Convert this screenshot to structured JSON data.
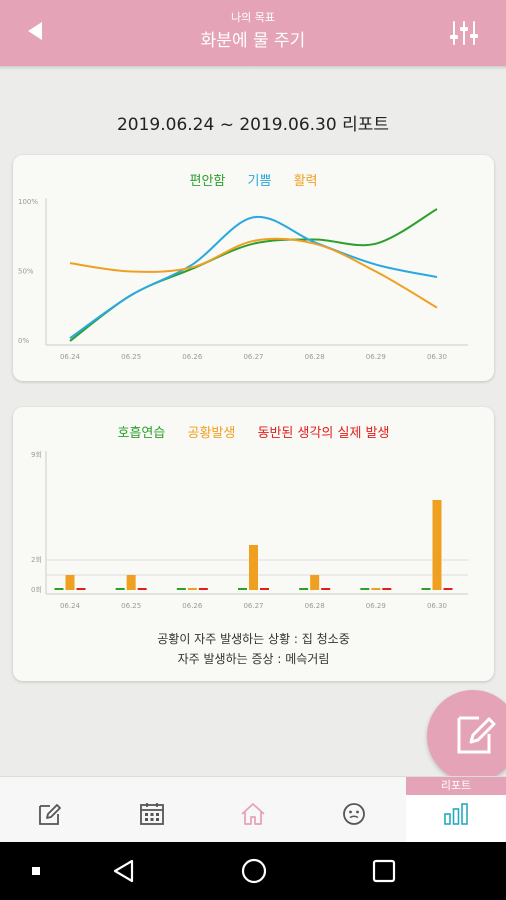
{
  "header": {
    "subtitle": "나의 목표",
    "title": "화분에 물 주기",
    "back_icon": "back-arrow-icon",
    "filter_icon": "sliders-icon",
    "bg_color": "#e5a3b7"
  },
  "report_title": "2019.06.24 ~ 2019.06.30 리포트",
  "emotion_chart": {
    "legend": [
      {
        "name": "편안함",
        "color": "#2ca02c"
      },
      {
        "name": "기쁨",
        "color": "#29a9e0"
      },
      {
        "name": "활력",
        "color": "#f0a020"
      }
    ],
    "y_ticks": [
      "100%",
      "50%",
      "0%"
    ],
    "chart_data": {
      "type": "line",
      "categories": [
        "06.24",
        "06.25",
        "06.26",
        "06.27",
        "06.28",
        "06.29",
        "06.30"
      ],
      "series": [
        {
          "name": "편안함",
          "values": [
            0,
            33,
            52,
            70,
            73,
            70,
            95
          ]
        },
        {
          "name": "기쁨",
          "values": [
            2,
            33,
            55,
            89,
            71,
            55,
            46
          ]
        },
        {
          "name": "활력",
          "values": [
            56,
            50,
            53,
            72,
            70,
            50,
            24
          ]
        }
      ],
      "ylim": [
        0,
        100
      ]
    }
  },
  "event_chart": {
    "legend": [
      {
        "name": "호흡연습",
        "color": "#2ca02c"
      },
      {
        "name": "공황발생",
        "color": "#f0a020"
      },
      {
        "name": "동반된 생각의 실제 발생",
        "color": "#e0201c"
      }
    ],
    "y_ticks": [
      "9회",
      "2회",
      "0회"
    ],
    "chart_data": {
      "type": "bar",
      "categories": [
        "06.24",
        "06.25",
        "06.26",
        "06.27",
        "06.28",
        "06.29",
        "06.30"
      ],
      "series": [
        {
          "name": "호흡연습",
          "values": [
            0,
            0,
            0,
            0,
            0,
            0,
            0
          ]
        },
        {
          "name": "공황발생",
          "values": [
            1,
            1,
            0,
            3,
            1,
            0,
            6
          ]
        },
        {
          "name": "동반된 생각의 실제 발생",
          "values": [
            0,
            0,
            0,
            0,
            0,
            0,
            0
          ]
        }
      ],
      "ylim": [
        0,
        9
      ]
    },
    "summary_line1": "공황이 자주 발생하는 상황 : 집 청소중",
    "summary_line2": "자주 발생하는 증상 : 메슥거림"
  },
  "fab": {
    "icon": "edit-note-icon"
  },
  "bottom_nav": {
    "items": [
      {
        "name": "write",
        "icon": "edit-icon"
      },
      {
        "name": "calendar",
        "icon": "calendar-icon"
      },
      {
        "name": "home",
        "icon": "home-icon"
      },
      {
        "name": "mood",
        "icon": "face-icon"
      },
      {
        "name": "report",
        "icon": "bar-chart-icon"
      }
    ],
    "active_badge": "리포트"
  },
  "system_nav": {
    "icons": [
      "dot-icon",
      "back-triangle-icon",
      "home-circle-icon",
      "recents-square-icon"
    ]
  }
}
